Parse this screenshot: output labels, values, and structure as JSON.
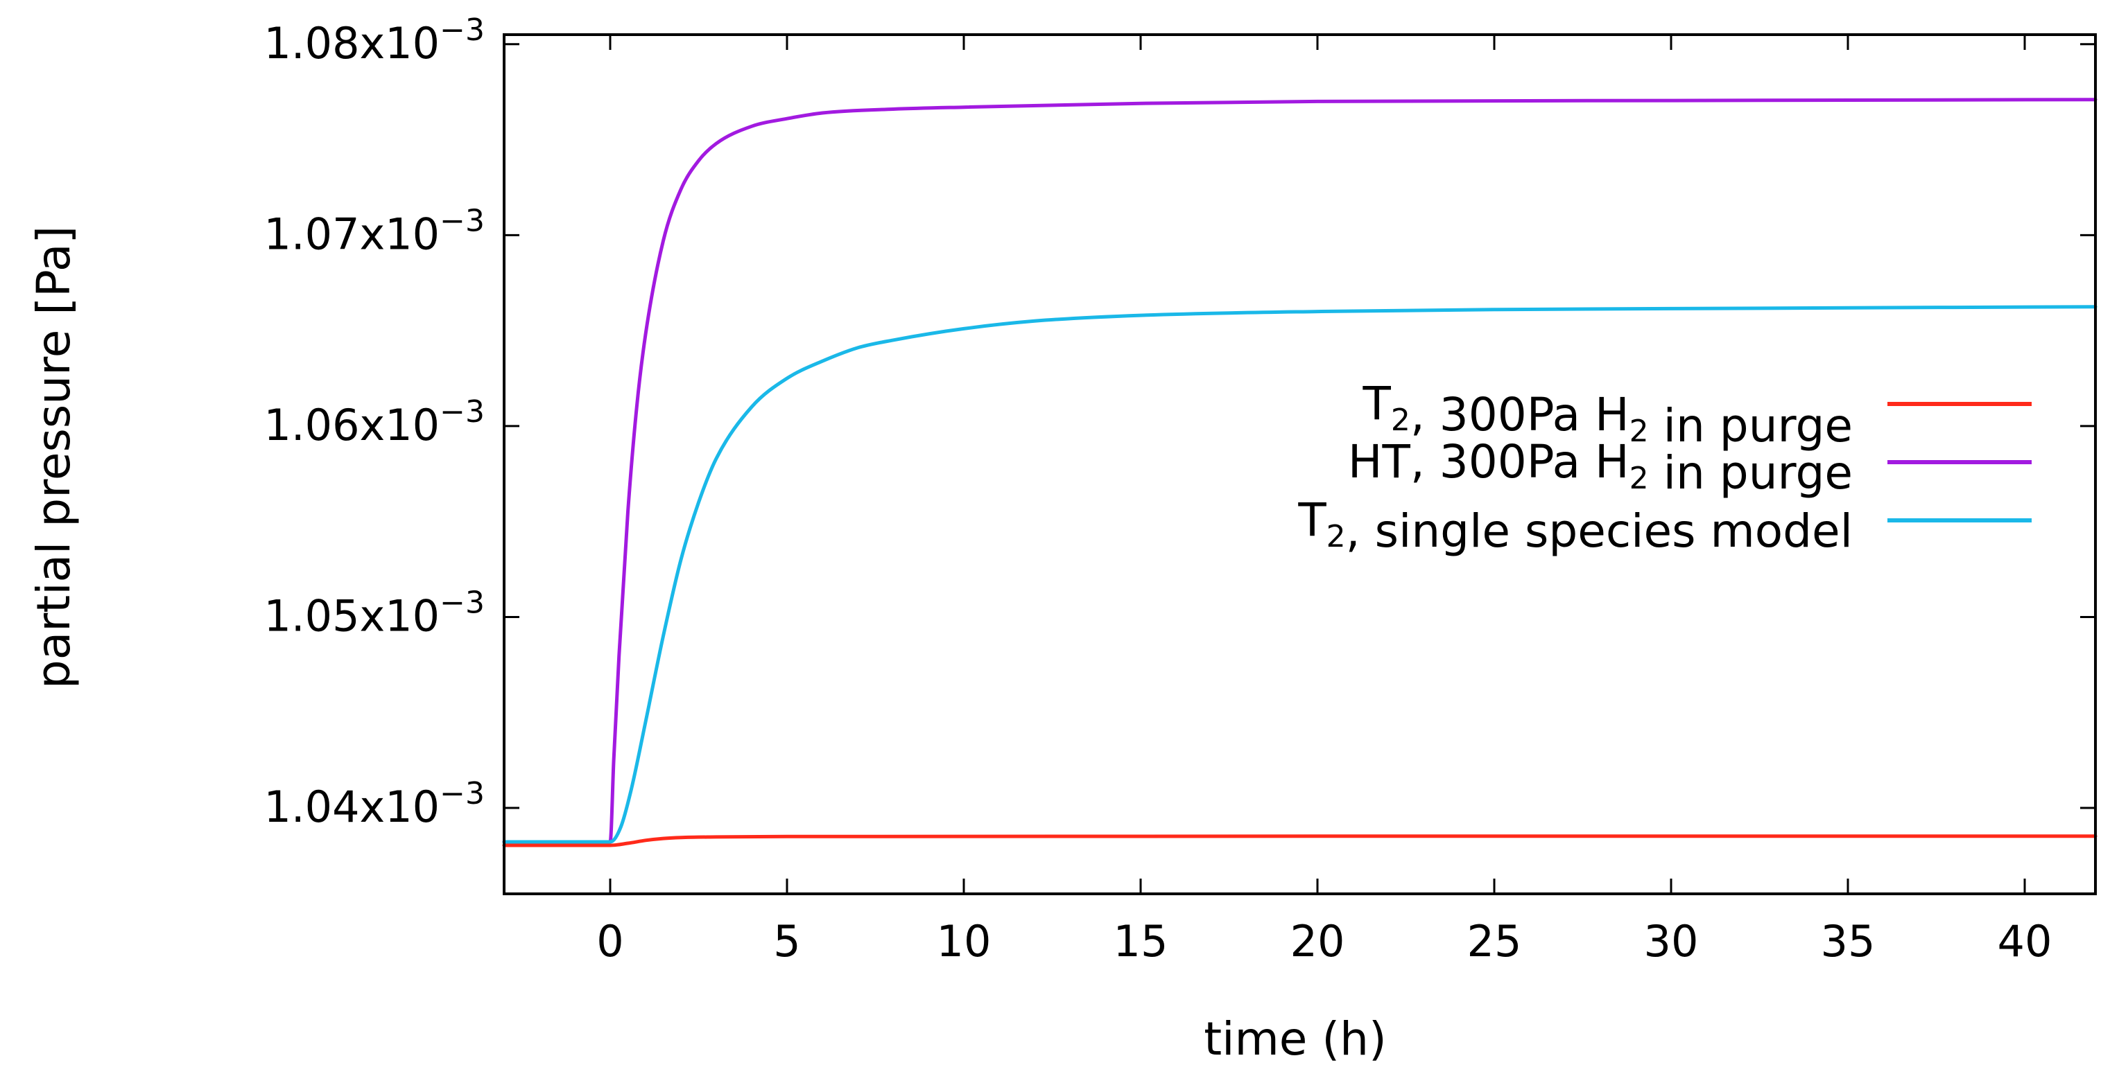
{
  "chart_data": {
    "type": "line",
    "title": "",
    "xlabel": "time (h)",
    "ylabel": "partial pressure [Pa]",
    "xlim": [
      -3,
      42
    ],
    "ylim": [
      0.0010355,
      0.0010805
    ],
    "grid": false,
    "legend_position": "center-right",
    "x_ticks": [
      {
        "value": 0,
        "label": "0"
      },
      {
        "value": 5,
        "label": "5"
      },
      {
        "value": 10,
        "label": "10"
      },
      {
        "value": 15,
        "label": "15"
      },
      {
        "value": 20,
        "label": "20"
      },
      {
        "value": 25,
        "label": "25"
      },
      {
        "value": 30,
        "label": "30"
      },
      {
        "value": 35,
        "label": "35"
      },
      {
        "value": 40,
        "label": "40"
      }
    ],
    "y_ticks": [
      {
        "value": 0.00104,
        "mantissa": "1.04x10",
        "exponent": "−3"
      },
      {
        "value": 0.00105,
        "mantissa": "1.05x10",
        "exponent": "−3"
      },
      {
        "value": 0.00106,
        "mantissa": "1.06x10",
        "exponent": "−3"
      },
      {
        "value": 0.00107,
        "mantissa": "1.07x10",
        "exponent": "−3"
      },
      {
        "value": 0.00108,
        "mantissa": "1.08x10",
        "exponent": "−3"
      }
    ],
    "series": [
      {
        "name": "T2, 300Pa H2 in purge",
        "legend": {
          "a": "T",
          "a_sub": "2",
          "b": ", 300Pa H",
          "b_sub": "2",
          "c": " in purge"
        },
        "color": "#ff2a1a",
        "x": [
          -3,
          0,
          0.5,
          1,
          1.5,
          2,
          3,
          5,
          10,
          20,
          30,
          42
        ],
        "values": [
          0.00103804,
          0.00103804,
          0.00103815,
          0.0010383,
          0.0010384,
          0.00103845,
          0.00103848,
          0.0010385,
          0.00103851,
          0.00103852,
          0.00103852,
          0.00103852
        ]
      },
      {
        "name": "HT, 300Pa H2 in purge",
        "legend": {
          "a": "HT, 300Pa H",
          "a_sub": "2",
          "b": " in purge",
          "b_sub": "",
          "c": ""
        },
        "color": "#a21ae0",
        "x": [
          -3,
          0,
          0.1,
          0.25,
          0.5,
          0.75,
          1,
          1.5,
          2,
          2.5,
          3,
          4,
          5,
          6,
          8,
          10,
          15,
          20,
          30,
          42
        ],
        "values": [
          0.00103822,
          0.00103822,
          0.0010425,
          0.001048,
          0.0010555,
          0.001061,
          0.0010648,
          0.0010697,
          0.0010724,
          0.0010739,
          0.0010748,
          0.0010757,
          0.0010761,
          0.0010764,
          0.0010766,
          0.0010767,
          0.0010769,
          0.001077,
          0.00107705,
          0.0010771
        ]
      },
      {
        "name": "T2, single species model",
        "legend": {
          "a": "T",
          "a_sub": "2",
          "b": ", single species model",
          "b_sub": "",
          "c": ""
        },
        "color": "#1ab8e8",
        "x": [
          -3,
          0,
          0.3,
          0.6,
          1,
          1.5,
          2,
          2.5,
          3,
          4,
          5,
          6,
          7,
          8,
          10,
          12,
          15,
          20,
          25,
          30,
          42
        ],
        "values": [
          0.00103822,
          0.00103822,
          0.001039,
          0.001041,
          0.0010445,
          0.001049,
          0.001053,
          0.001056,
          0.0010583,
          0.001061,
          0.0010625,
          0.0010634,
          0.0010641,
          0.0010645,
          0.0010651,
          0.0010655,
          0.0010658,
          0.001066,
          0.0010661,
          0.00106615,
          0.00106625
        ]
      }
    ]
  }
}
